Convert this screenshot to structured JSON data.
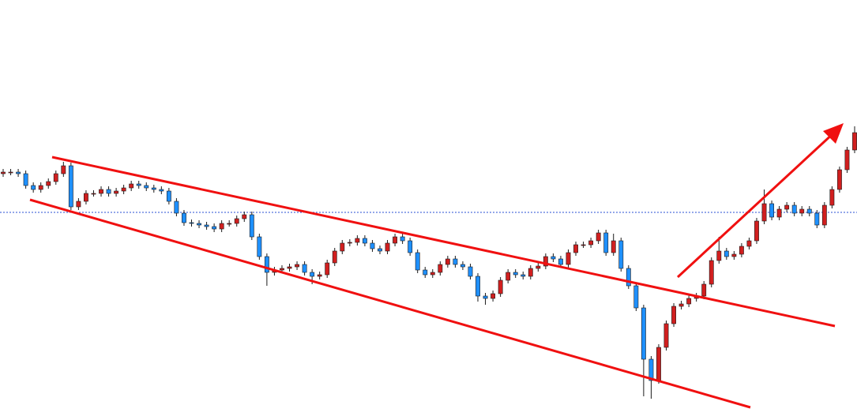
{
  "chart_data": {
    "type": "candlestick",
    "up_color": "#d11f1f",
    "down_color": "#1e90ff",
    "wick_color": "#1a1a1a",
    "ylim": [
      0,
      532
    ],
    "open": [
      312,
      314,
      314,
      312,
      297,
      292,
      297,
      302,
      312,
      322,
      270,
      277,
      287,
      287,
      292,
      287,
      290,
      294,
      299,
      297,
      294,
      292,
      290,
      277,
      262,
      250,
      249,
      247,
      245,
      242,
      249,
      249,
      255,
      260,
      232,
      207,
      187,
      190,
      192,
      194,
      197,
      187,
      182,
      184,
      199,
      214,
      224,
      225,
      230,
      224,
      217,
      214,
      224,
      232,
      227,
      212,
      190,
      184,
      187,
      197,
      204,
      197,
      194,
      182,
      157,
      154,
      160,
      177,
      187,
      184,
      182,
      192,
      195,
      207,
      204,
      197,
      212,
      222,
      222,
      227,
      237,
      212,
      227,
      192,
      170,
      142,
      77,
      50,
      92,
      122,
      144,
      147,
      154,
      157,
      172,
      202,
      214,
      207,
      210,
      220,
      227,
      252,
      274,
      257,
      267,
      272,
      262,
      267,
      262,
      247,
      272,
      292,
      317,
      342
    ],
    "high": [
      318,
      318,
      318,
      316,
      301,
      301,
      306,
      316,
      327,
      326,
      281,
      291,
      291,
      296,
      296,
      294,
      298,
      303,
      303,
      301,
      298,
      296,
      294,
      281,
      266,
      254,
      253,
      251,
      249,
      253,
      253,
      259,
      264,
      264,
      236,
      211,
      194,
      196,
      198,
      201,
      201,
      191,
      188,
      203,
      218,
      228,
      229,
      234,
      234,
      228,
      221,
      228,
      236,
      236,
      231,
      216,
      194,
      191,
      201,
      208,
      208,
      201,
      198,
      186,
      161,
      164,
      181,
      191,
      191,
      188,
      196,
      199,
      211,
      211,
      208,
      216,
      226,
      226,
      231,
      241,
      241,
      236,
      231,
      196,
      174,
      146,
      81,
      96,
      126,
      148,
      151,
      158,
      161,
      176,
      206,
      232,
      218,
      214,
      224,
      231,
      256,
      292,
      278,
      271,
      276,
      276,
      271,
      271,
      266,
      276,
      296,
      321,
      346,
      372
    ],
    "low": [
      308,
      310,
      308,
      293,
      288,
      288,
      293,
      298,
      308,
      266,
      266,
      273,
      283,
      283,
      283,
      283,
      286,
      290,
      293,
      290,
      288,
      286,
      273,
      258,
      246,
      245,
      243,
      241,
      238,
      238,
      245,
      245,
      251,
      228,
      203,
      170,
      183,
      186,
      188,
      190,
      183,
      172,
      178,
      180,
      195,
      210,
      220,
      221,
      220,
      213,
      210,
      210,
      220,
      223,
      208,
      186,
      180,
      180,
      183,
      193,
      193,
      190,
      178,
      150,
      146,
      150,
      156,
      173,
      180,
      178,
      178,
      188,
      191,
      200,
      193,
      193,
      208,
      218,
      218,
      223,
      208,
      208,
      188,
      166,
      138,
      30,
      27,
      46,
      88,
      118,
      140,
      143,
      150,
      153,
      168,
      198,
      203,
      203,
      206,
      216,
      223,
      248,
      253,
      253,
      263,
      258,
      258,
      258,
      243,
      243,
      268,
      288,
      313,
      338
    ],
    "close": [
      314,
      314,
      312,
      297,
      292,
      297,
      302,
      312,
      322,
      270,
      277,
      287,
      287,
      292,
      287,
      290,
      294,
      299,
      297,
      294,
      292,
      290,
      277,
      262,
      250,
      249,
      247,
      245,
      242,
      249,
      249,
      255,
      260,
      232,
      207,
      187,
      190,
      192,
      194,
      197,
      187,
      182,
      184,
      199,
      214,
      224,
      225,
      230,
      224,
      217,
      214,
      224,
      232,
      227,
      212,
      190,
      184,
      187,
      197,
      204,
      197,
      194,
      182,
      157,
      154,
      160,
      177,
      187,
      184,
      182,
      192,
      195,
      207,
      204,
      197,
      212,
      222,
      222,
      227,
      237,
      212,
      227,
      192,
      170,
      142,
      77,
      50,
      92,
      122,
      144,
      147,
      154,
      157,
      172,
      202,
      214,
      207,
      210,
      220,
      227,
      252,
      274,
      257,
      267,
      272,
      262,
      267,
      262,
      247,
      272,
      292,
      317,
      342,
      364
    ]
  }
}
